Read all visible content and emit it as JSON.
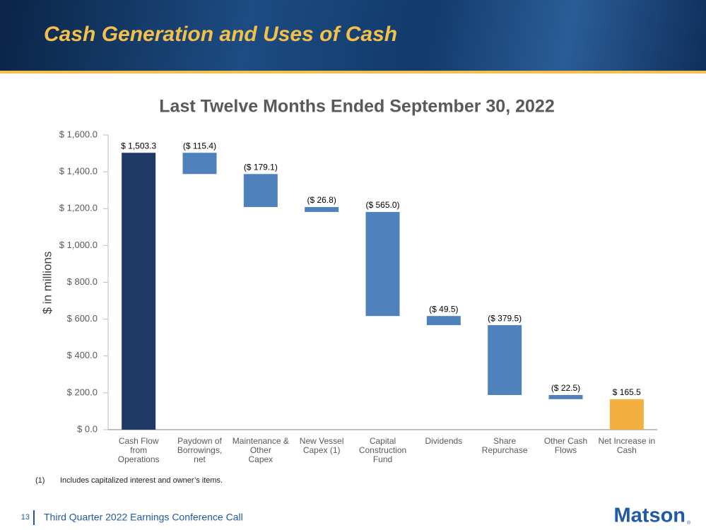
{
  "header": {
    "title": "Cash Generation and Uses of Cash"
  },
  "chart_data": {
    "type": "waterfall",
    "title": "Last Twelve Months Ended September 30, 2022",
    "y_label": "$ in millions",
    "categories": [
      "Cash Flow\nfrom\nOperations",
      "Paydown of\nBorrowings,\nnet",
      "Maintenance &\nOther\nCapex",
      "New Vessel\nCapex (1)",
      "Capital\nConstruction\nFund",
      "Dividends",
      "Share\nRepurchase",
      "Other Cash\nFlows",
      "Net Increase in\nCash"
    ],
    "values": [
      1503.3,
      -115.4,
      -179.1,
      -26.8,
      -565.0,
      -49.5,
      -379.5,
      -22.5,
      165.5
    ],
    "value_labels": [
      "$ 1,503.3",
      "($ 115.4)",
      "($ 179.1)",
      "($ 26.8)",
      "($ 565.0)",
      "($ 49.5)",
      "($ 379.5)",
      "($ 22.5)",
      "$ 165.5"
    ],
    "colors": [
      "#1f3864",
      "#4f81bd",
      "#4f81bd",
      "#4f81bd",
      "#4f81bd",
      "#4f81bd",
      "#4f81bd",
      "#4f81bd",
      "#f4b03e"
    ],
    "ylim": [
      0,
      1600
    ],
    "yticks": [
      {
        "value": 0,
        "label": "$ 0.0"
      },
      {
        "value": 200,
        "label": "$ 200.0"
      },
      {
        "value": 400,
        "label": "$ 400.0"
      },
      {
        "value": 600,
        "label": "$ 600.0"
      },
      {
        "value": 800,
        "label": "$ 800.0"
      },
      {
        "value": 1000,
        "label": "$ 1,000.0"
      },
      {
        "value": 1200,
        "label": "$ 1,200.0"
      },
      {
        "value": 1400,
        "label": "$ 1,400.0"
      },
      {
        "value": 1600,
        "label": "$ 1,600.0"
      }
    ],
    "grid": false
  },
  "footnote": {
    "marker": "(1)",
    "text": "Includes capitalized interest and owner’s items."
  },
  "footer": {
    "page": "13",
    "text": "Third Quarter 2022 Earnings Conference Call",
    "logo": "Matson",
    "logo_mark": "®"
  }
}
